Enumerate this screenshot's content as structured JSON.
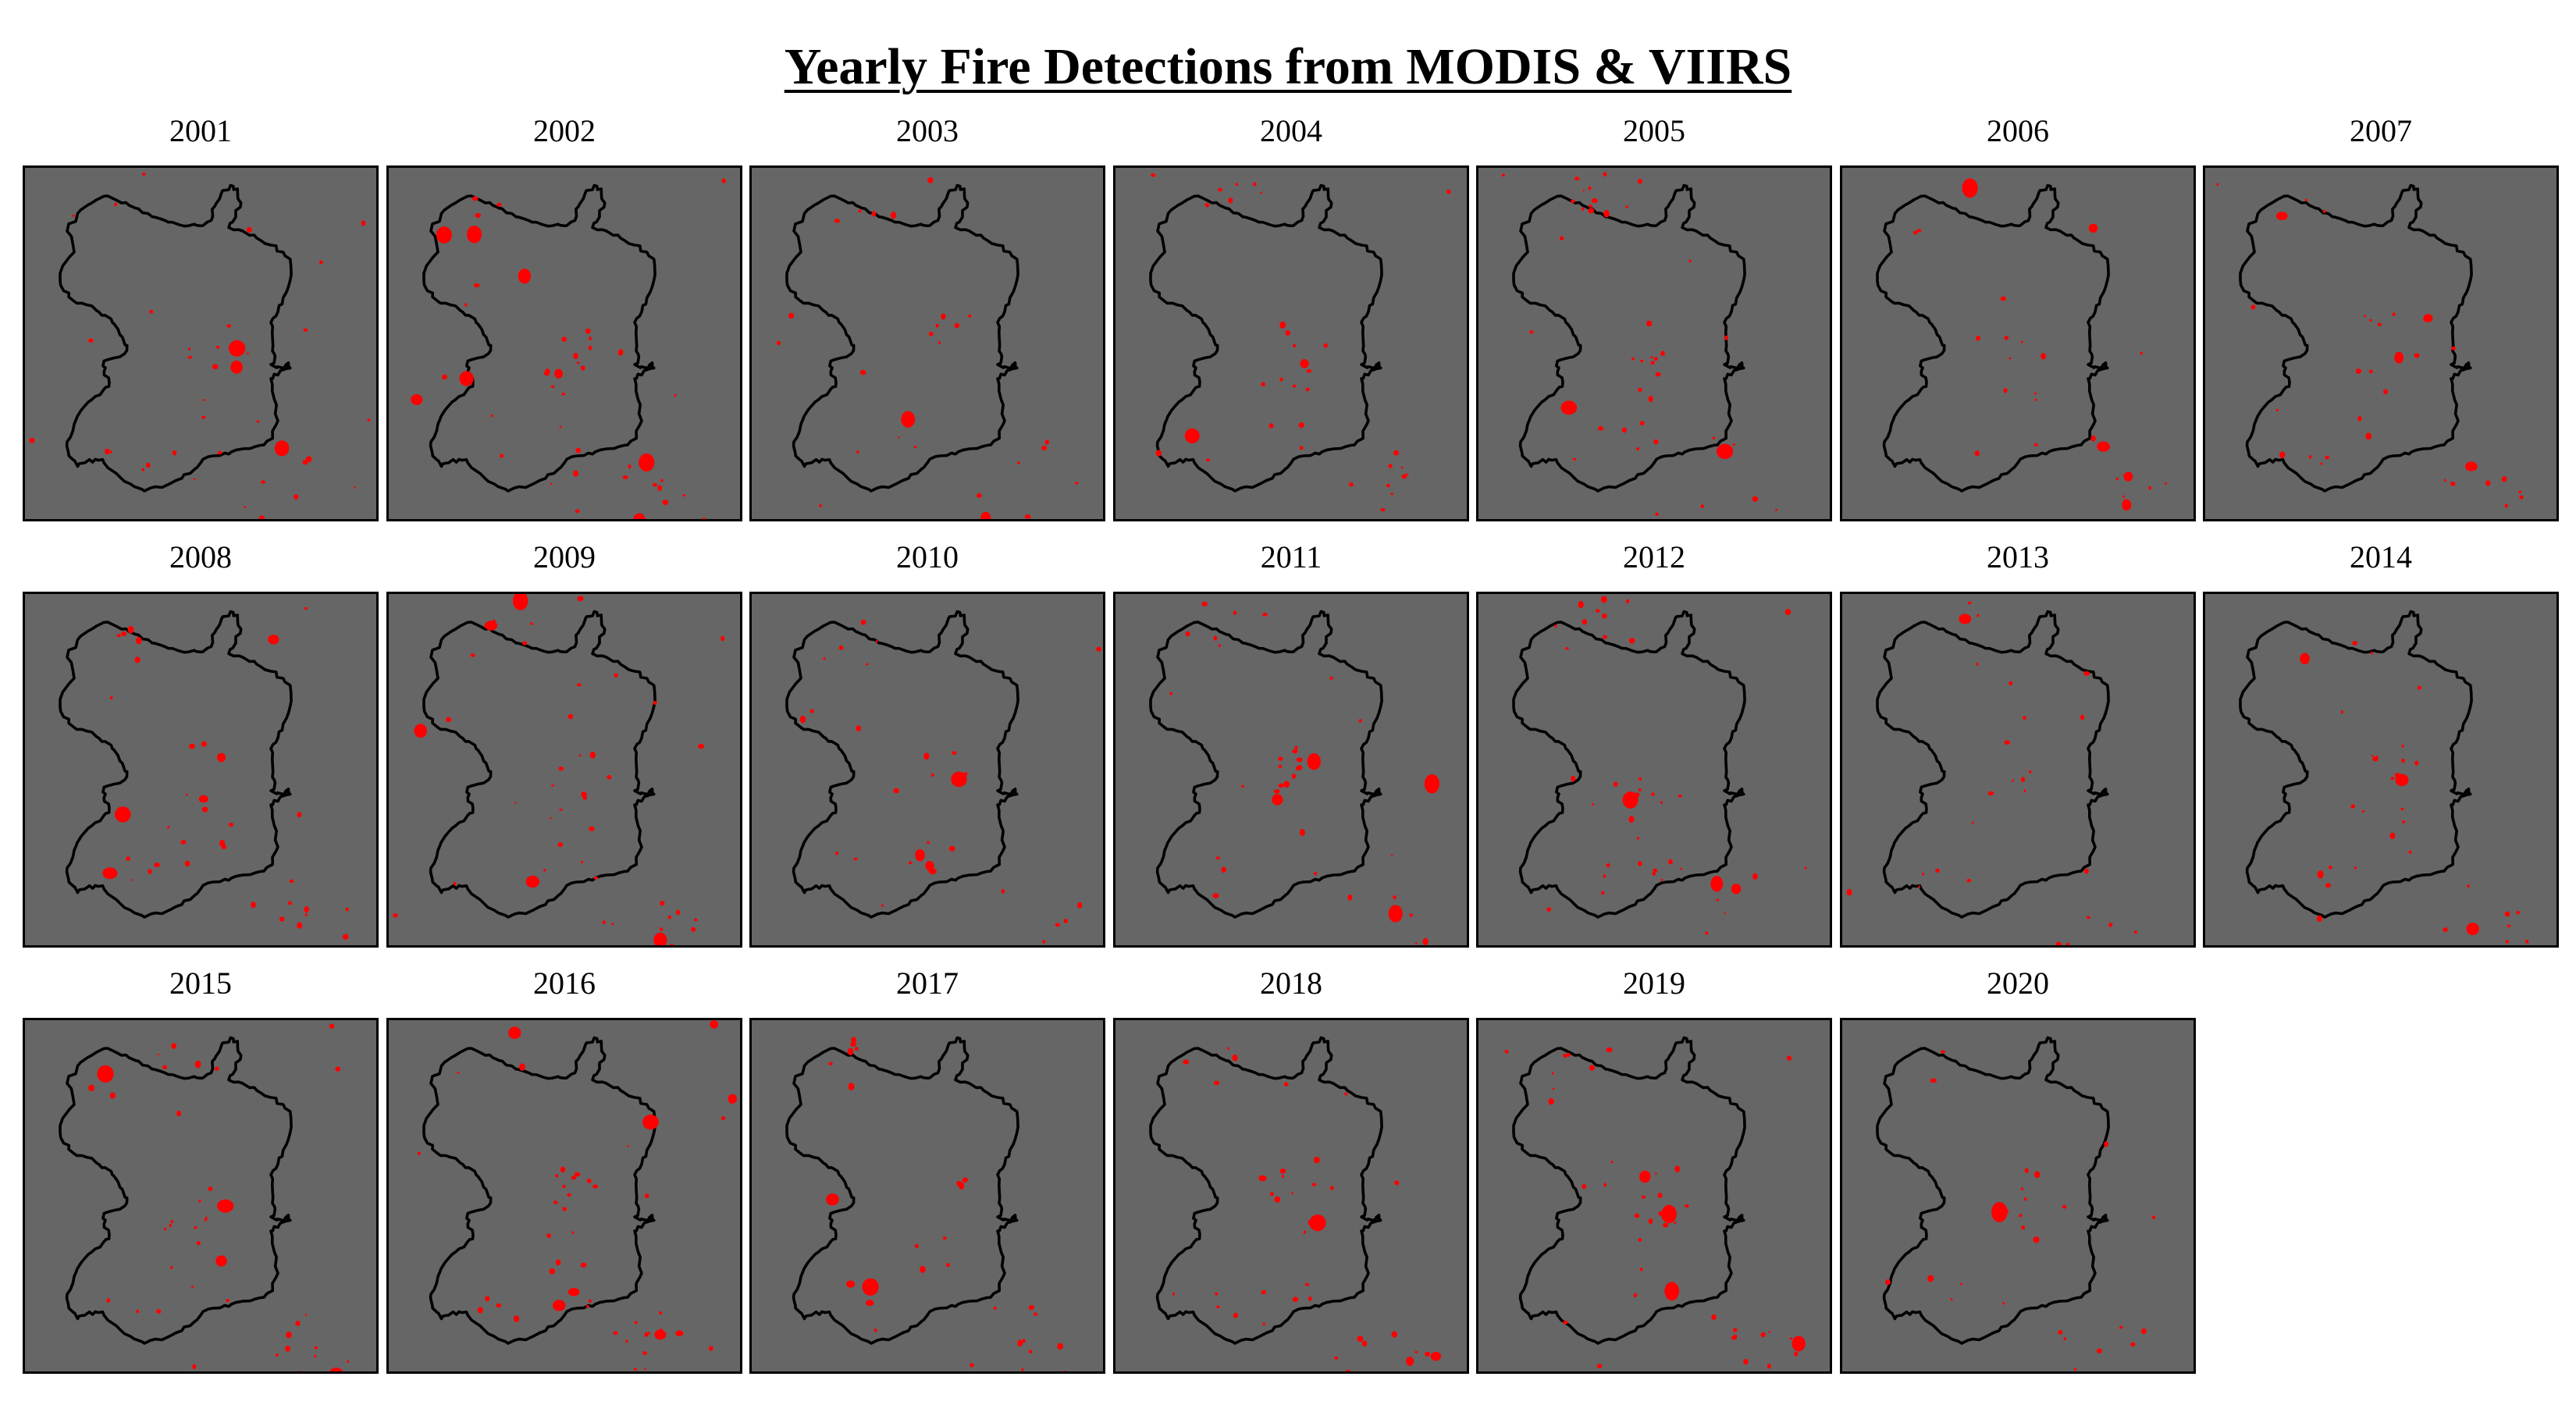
{
  "title": "Yearly Fire Detections from MODIS & VIIRS",
  "colors": {
    "panel_background": "#666666",
    "boundary": "#000000",
    "fire": "#ff0000",
    "page_background": "#ffffff"
  },
  "panels": [
    {
      "label": "2001",
      "year": 2001
    },
    {
      "label": "2002",
      "year": 2002
    },
    {
      "label": "2003",
      "year": 2003
    },
    {
      "label": "2004",
      "year": 2004
    },
    {
      "label": "2005",
      "year": 2005
    },
    {
      "label": "2006",
      "year": 2006
    },
    {
      "label": "2007",
      "year": 2007
    },
    {
      "label": "2008",
      "year": 2008
    },
    {
      "label": "2009",
      "year": 2009
    },
    {
      "label": "2010",
      "year": 2010
    },
    {
      "label": "2011",
      "year": 2011
    },
    {
      "label": "2012",
      "year": 2012
    },
    {
      "label": "2013",
      "year": 2013
    },
    {
      "label": "2014",
      "year": 2014
    },
    {
      "label": "2015",
      "year": 2015
    },
    {
      "label": "2016",
      "year": 2016
    },
    {
      "label": "2017",
      "year": 2017
    },
    {
      "label": "2018",
      "year": 2018
    },
    {
      "label": "2019",
      "year": 2019
    },
    {
      "label": "2020",
      "year": 2020
    }
  ]
}
